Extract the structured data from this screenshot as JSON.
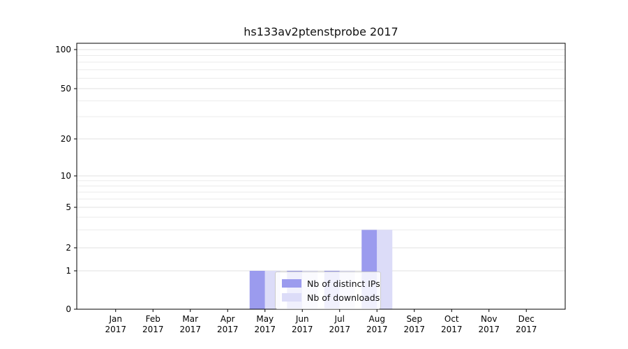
{
  "chart_data": {
    "type": "bar",
    "title": "hs133av2ptenstprobe 2017",
    "categories": [
      "Jan",
      "Feb",
      "Mar",
      "Apr",
      "May",
      "Jun",
      "Jul",
      "Aug",
      "Sep",
      "Oct",
      "Nov",
      "Dec"
    ],
    "year": "2017",
    "series": [
      {
        "name": "Nb of distinct IPs",
        "color": "#9b9bee",
        "values": [
          0,
          0,
          0,
          0,
          1,
          1,
          1,
          3,
          0,
          0,
          0,
          0
        ]
      },
      {
        "name": "Nb of downloads",
        "color": "#dcdcf8",
        "values": [
          0,
          0,
          0,
          0,
          1,
          1,
          1,
          3,
          0,
          0,
          0,
          0
        ]
      }
    ],
    "yticks": [
      0,
      1,
      2,
      5,
      10,
      20,
      50,
      100
    ],
    "ylim": [
      0,
      100
    ],
    "yscale": "log-like",
    "grid": true,
    "legend_position": "lower center",
    "grid_color_minor": "#ebebeb",
    "grid_color_major": "#e0e0e0",
    "axis_color": "#000000"
  }
}
